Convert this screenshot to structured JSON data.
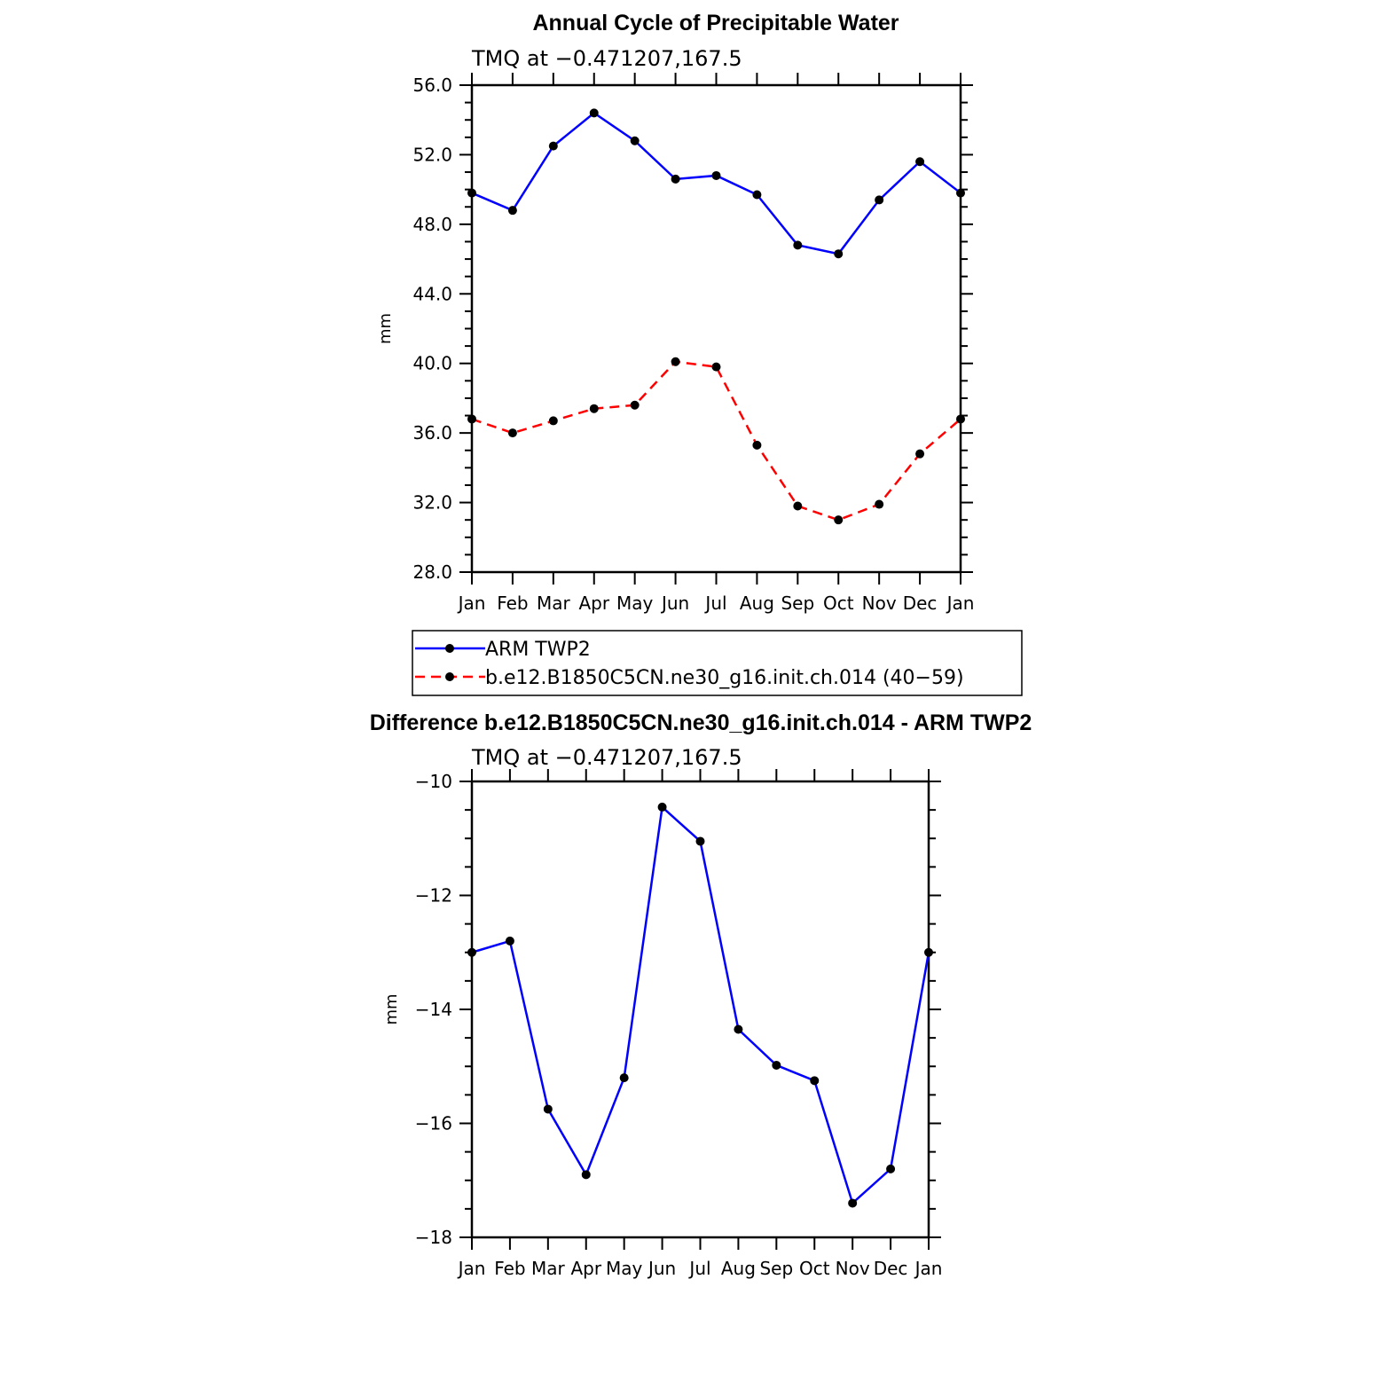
{
  "chart_data": [
    {
      "type": "line",
      "title": "Annual Cycle of Precipitable Water",
      "subtitle": "TMQ at −0.471207,167.5",
      "xlabel": "",
      "ylabel": "mm",
      "categories": [
        "Jan",
        "Feb",
        "Mar",
        "Apr",
        "May",
        "Jun",
        "Jul",
        "Aug",
        "Sep",
        "Oct",
        "Nov",
        "Dec",
        "Jan"
      ],
      "ylim": [
        28,
        56
      ],
      "yticks": [
        28,
        32,
        36,
        40,
        44,
        48,
        52,
        56
      ],
      "ytick_labels": [
        "28.0",
        "32.0",
        "36.0",
        "40.0",
        "44.0",
        "48.0",
        "52.0",
        "56.0"
      ],
      "series": [
        {
          "name": "ARM TWP2",
          "color": "#0000ff",
          "dash": "solid",
          "values": [
            49.8,
            48.8,
            52.5,
            54.4,
            52.8,
            50.6,
            50.8,
            49.7,
            46.8,
            46.3,
            49.4,
            51.6,
            49.8
          ]
        },
        {
          "name": "b.e12.B1850C5CN.ne30_g16.init.ch.014 (40−59)",
          "color": "#ff0000",
          "dash": "dashed",
          "values": [
            36.8,
            36.0,
            36.7,
            37.4,
            37.6,
            40.1,
            39.8,
            35.3,
            31.8,
            31.0,
            31.9,
            34.8,
            36.8
          ]
        }
      ],
      "legend": "below"
    },
    {
      "type": "line",
      "title": "Difference b.e12.B1850C5CN.ne30_g16.init.ch.014 - ARM TWP2",
      "subtitle": "TMQ at −0.471207,167.5",
      "xlabel": "",
      "ylabel": "mm",
      "categories": [
        "Jan",
        "Feb",
        "Mar",
        "Apr",
        "May",
        "Jun",
        "Jul",
        "Aug",
        "Sep",
        "Oct",
        "Nov",
        "Dec",
        "Jan"
      ],
      "ylim": [
        -18,
        -10
      ],
      "yticks": [
        -18,
        -16,
        -14,
        -12,
        -10
      ],
      "ytick_labels": [
        "−18",
        "−16",
        "−14",
        "−12",
        "−10"
      ],
      "series": [
        {
          "name": "Difference",
          "color": "#0000ff",
          "dash": "solid",
          "values": [
            -13.0,
            -12.8,
            -15.75,
            -16.9,
            -15.2,
            -10.45,
            -11.05,
            -14.35,
            -14.98,
            -15.25,
            -17.4,
            -16.8,
            -13.0
          ]
        }
      ]
    }
  ]
}
